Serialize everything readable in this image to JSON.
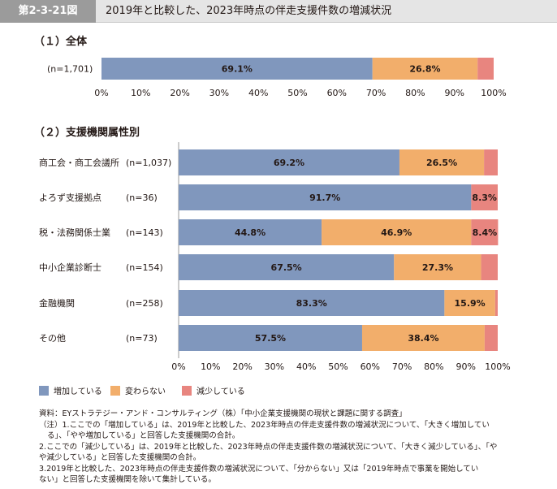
{
  "header": {
    "figure_no": "第2-3-21図",
    "title": "2019年と比較した、2023年時点の伴走支援件数の増減状況"
  },
  "colors": {
    "increase": "#8097bd",
    "unchanged": "#f2ae6b",
    "decrease": "#e8857f"
  },
  "legend": [
    "増加している",
    "変わらない",
    "減少している"
  ],
  "chart_data": [
    {
      "type": "bar",
      "orientation": "horizontal",
      "stacked": true,
      "title": "（１）全体",
      "categories": [
        "(n=1,701)"
      ],
      "series": [
        {
          "name": "増加している",
          "values": [
            69.1
          ],
          "labels": [
            "69.1%"
          ]
        },
        {
          "name": "変わらない",
          "values": [
            26.8
          ],
          "labels": [
            "26.8%"
          ]
        },
        {
          "name": "減少している",
          "values": [
            4.1
          ],
          "labels": [
            ""
          ]
        }
      ],
      "xlim": [
        0,
        100
      ],
      "xticks": [
        "0%",
        "10%",
        "20%",
        "30%",
        "40%",
        "50%",
        "60%",
        "70%",
        "80%",
        "90%",
        "100%"
      ]
    },
    {
      "type": "bar",
      "orientation": "horizontal",
      "stacked": true,
      "title": "（２）支援機関属性別",
      "categories": [
        "商工会・商工会議所",
        "よろず支援拠点",
        "税・法務関係士業",
        "中小企業診断士",
        "金融機関",
        "その他"
      ],
      "n_labels": [
        "(n=1,037)",
        "(n=36)",
        "(n=143)",
        "(n=154)",
        "(n=258)",
        "(n=73)"
      ],
      "series": [
        {
          "name": "増加している",
          "values": [
            69.2,
            91.7,
            44.8,
            67.5,
            83.3,
            57.5
          ],
          "labels": [
            "69.2%",
            "91.7%",
            "44.8%",
            "67.5%",
            "83.3%",
            "57.5%"
          ]
        },
        {
          "name": "変わらない",
          "values": [
            26.5,
            0,
            46.9,
            27.3,
            15.9,
            38.4
          ],
          "labels": [
            "26.5%",
            "",
            "46.9%",
            "27.3%",
            "15.9%",
            "38.4%"
          ]
        },
        {
          "name": "減少している",
          "values": [
            4.3,
            8.3,
            8.4,
            5.2,
            0.8,
            4.1
          ],
          "labels": [
            "",
            "8.3%",
            "8.4%",
            "",
            "",
            ""
          ]
        }
      ],
      "xlim": [
        0,
        100
      ],
      "xticks": [
        "0%",
        "10%",
        "20%",
        "30%",
        "40%",
        "50%",
        "60%",
        "70%",
        "80%",
        "90%",
        "100%"
      ]
    }
  ],
  "notes": {
    "source": "資料：EYストラテジー・アンド・コンサルティング（株）「中小企業支援機関の現状と課題に関する調査」",
    "note1a": "（注）1.ここでの「増加している」は、2019年と比較した、2023年時点の伴走支援件数の増減状況について、「大きく増加してい",
    "note1b": "る」、「やや増加している」と回答した支援機関の合計。",
    "note2a": "2.ここでの「減少している」は、2019年と比較した、2023年時点の伴走支援件数の増減状況について、「大きく減少している」、「や",
    "note2b": "や減少している」と回答した支援機関の合計。",
    "note3a": "3.2019年と比較した、2023年時点の伴走支援件数の増減状況について、「分からない」又は「2019年時点で事業を開始してい",
    "note3b": "ない」と回答した支援機関を除いて集計している。"
  }
}
